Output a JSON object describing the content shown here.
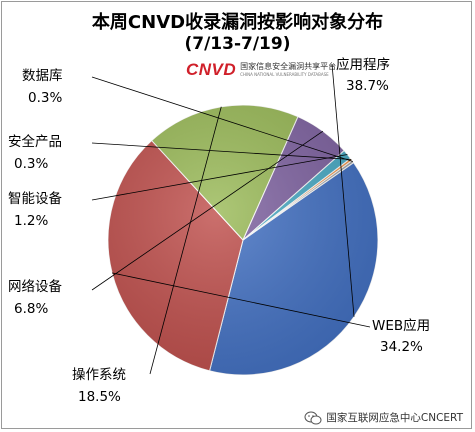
{
  "chart_data": {
    "type": "pie",
    "title": "本周CNVD收录漏洞按影响对象分布",
    "subtitle": "(7/13-7/19)",
    "slices": [
      {
        "name": "应用程序",
        "value": 38.7,
        "label": "38.7%",
        "color": "#4472C4"
      },
      {
        "name": "WEB应用",
        "value": 34.2,
        "label": "34.2%",
        "color": "#C0504D"
      },
      {
        "name": "操作系统",
        "value": 18.5,
        "label": "18.5%",
        "color": "#9BBB59"
      },
      {
        "name": "网络设备",
        "value": 6.8,
        "label": "6.8%",
        "color": "#8064A2"
      },
      {
        "name": "智能设备",
        "value": 1.2,
        "label": "1.2%",
        "color": "#4BACC6"
      },
      {
        "name": "安全产品",
        "value": 0.3,
        "label": "0.3%",
        "color": "#F79646"
      },
      {
        "name": "数据库",
        "value": 0.3,
        "label": "0.3%",
        "color": "#A5A5A5"
      }
    ]
  },
  "logo": {
    "text": "CNVD",
    "cn": "国家信息安全漏洞共享平台",
    "en": "CHINA NATIONAL VULNERABILITY DATABASE"
  },
  "watermark": {
    "text": "国家互联网应急中心CNCERT",
    "icon": "wechat-icon"
  }
}
